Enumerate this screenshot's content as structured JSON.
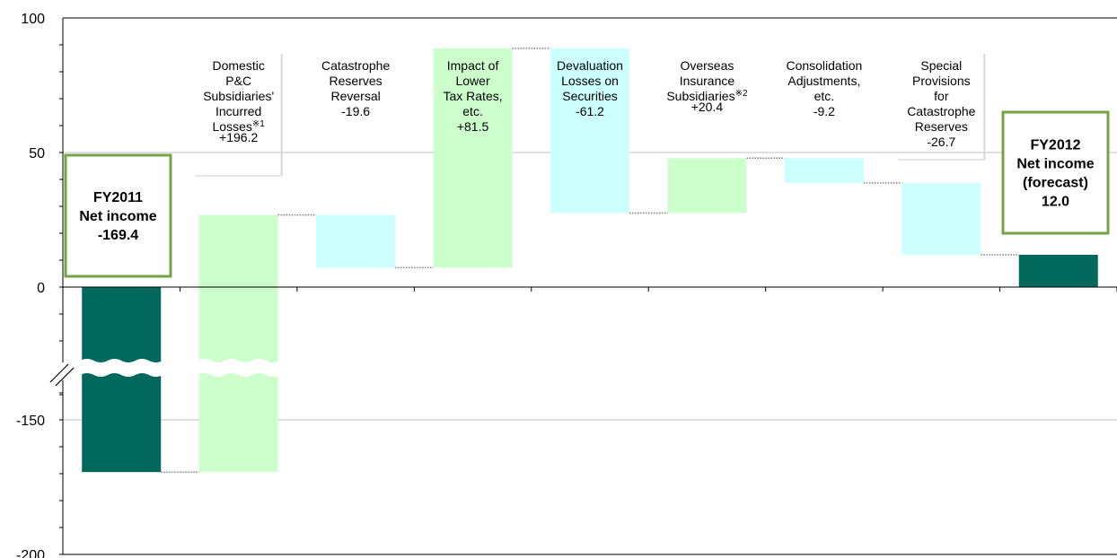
{
  "chart_data": {
    "type": "bar",
    "subtype": "waterfall",
    "y_axis_break": true,
    "y_ticks": [
      100,
      50,
      0,
      -150,
      -200
    ],
    "grid": "horizontal",
    "steps": [
      {
        "name_lines": [],
        "value": -169.4,
        "kind": "total"
      },
      {
        "name_lines": [
          "Domestic",
          "P&C",
          "Subsidiaries'",
          "Incurred",
          "Losses※1",
          "+196.2"
        ],
        "value": 196.2,
        "kind": "increase"
      },
      {
        "name_lines": [
          "Catastrophe",
          "Reserves",
          "Reversal",
          "-19.6"
        ],
        "value": -19.6,
        "kind": "decrease"
      },
      {
        "name_lines": [
          "Impact of",
          "Lower",
          "Tax Rates,",
          "etc.",
          "+81.5"
        ],
        "value": 81.5,
        "kind": "increase"
      },
      {
        "name_lines": [
          "Devaluation",
          "Losses on",
          "Securities",
          "-61.2"
        ],
        "value": -61.2,
        "kind": "decrease"
      },
      {
        "name_lines": [
          "Overseas",
          "Insurance",
          "Subsidiaries※2",
          "+20.4"
        ],
        "value": 20.4,
        "kind": "increase"
      },
      {
        "name_lines": [
          "Consolidation",
          "Adjustments,",
          "etc.",
          "-9.2"
        ],
        "value": -9.2,
        "kind": "decrease"
      },
      {
        "name_lines": [
          "Special",
          "Provisions",
          "for",
          "Catastrophe",
          "Reserves",
          "-26.7"
        ],
        "value": -26.7,
        "kind": "decrease"
      },
      {
        "name_lines": [],
        "value": 12.0,
        "kind": "total"
      }
    ],
    "start_box_lines": [
      "FY2011",
      "Net income",
      "-169.4"
    ],
    "end_box_lines": [
      "FY2012",
      "Net income",
      "(forecast)",
      "12.0"
    ],
    "colors": {
      "total": "#00695c",
      "increase": "#ccffcc",
      "decrease": "#ccffff",
      "box_border": "#76a543",
      "grid": "#c0c0c0",
      "connector": "#808080"
    }
  }
}
